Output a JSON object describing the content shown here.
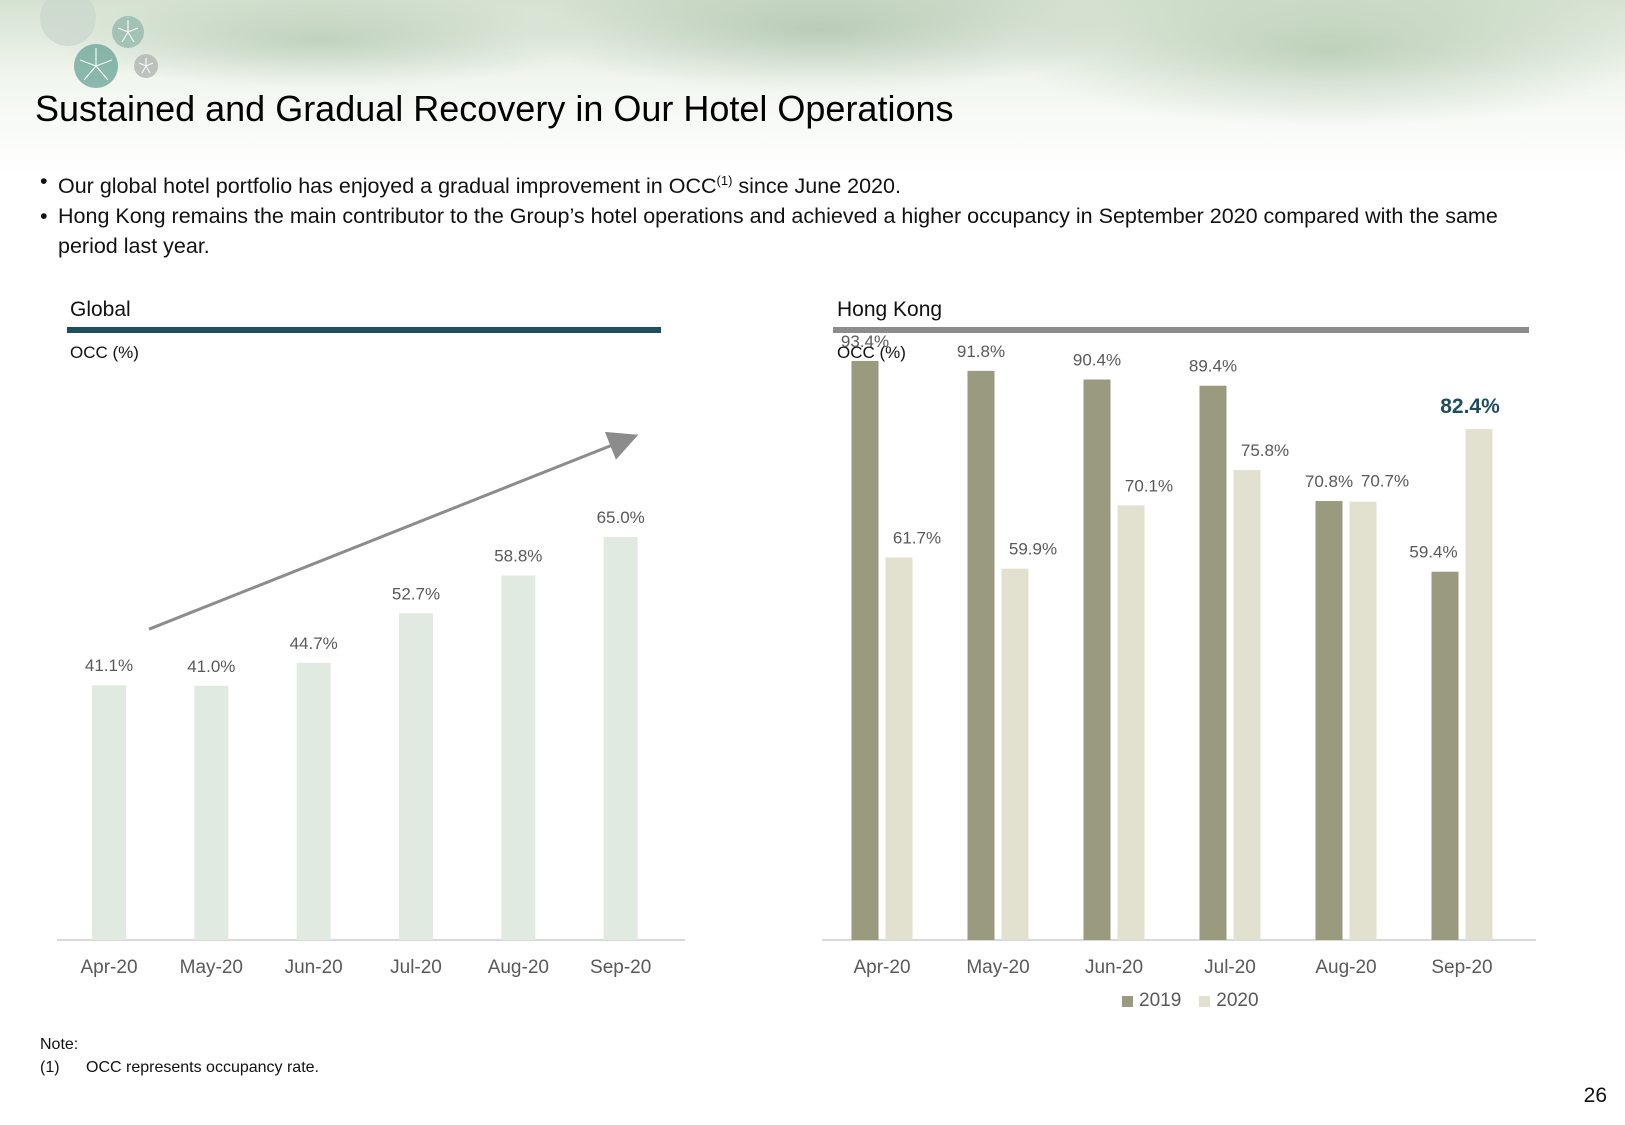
{
  "title": "Sustained and Gradual Recovery in Our Hotel Operations",
  "bullets": [
    {
      "before": "Our global hotel portfolio has enjoyed a gradual improvement in OCC",
      "sup": "(1)",
      "after": " since June 2020."
    },
    {
      "before": "Hong Kong remains the main contributor to the Group’s hotel operations and achieved a higher occupancy in September 2020 compared with the same period last year.",
      "sup": "",
      "after": ""
    }
  ],
  "bullet_glyph": "•",
  "colors": {
    "global_rule": "#1f4e5f",
    "hk_rule": "#8c8c8c",
    "global_bar": "#e1eae0",
    "series_2019": "#999a7e",
    "series_2020": "#e2e0cf",
    "label_gray": "#595959",
    "highlight": "#1f4e5f",
    "arrow": "#8c8c8c",
    "axis": "#d9d9d9"
  },
  "chart_data": [
    {
      "type": "bar",
      "panel_title": "Global",
      "ylabel": "OCC (%)",
      "categories": [
        "Apr-20",
        "May-20",
        "Jun-20",
        "Jul-20",
        "Aug-20",
        "Sep-20"
      ],
      "values": [
        41.1,
        41.0,
        44.7,
        52.7,
        58.8,
        65.0
      ],
      "labels": [
        "41.1%",
        "41.0%",
        "44.7%",
        "52.7%",
        "58.8%",
        "65.0%"
      ],
      "ylim": [
        0,
        100
      ],
      "trend_arrow": true
    },
    {
      "type": "bar",
      "panel_title": "Hong Kong",
      "ylabel": "OCC (%)",
      "categories": [
        "Apr-20",
        "May-20",
        "Jun-20",
        "Jul-20",
        "Aug-20",
        "Sep-20"
      ],
      "series": [
        {
          "name": "2019",
          "values": [
            93.4,
            91.8,
            90.4,
            89.4,
            70.8,
            59.4
          ],
          "labels": [
            "93.4%",
            "91.8%",
            "90.4%",
            "89.4%",
            "70.8%",
            "59.4%"
          ]
        },
        {
          "name": "2020",
          "values": [
            61.7,
            59.9,
            70.1,
            75.8,
            70.7,
            82.4
          ],
          "labels": [
            "61.7%",
            "59.9%",
            "70.1%",
            "75.8%",
            "70.7%",
            "82.4%"
          ]
        }
      ],
      "highlight_label": "82.4%",
      "ylim": [
        0,
        100
      ],
      "legend": "bottom"
    }
  ],
  "note": {
    "heading": "Note:",
    "items": [
      {
        "num": "(1)",
        "text": "OCC represents occupancy rate."
      }
    ]
  },
  "page_number": "26"
}
